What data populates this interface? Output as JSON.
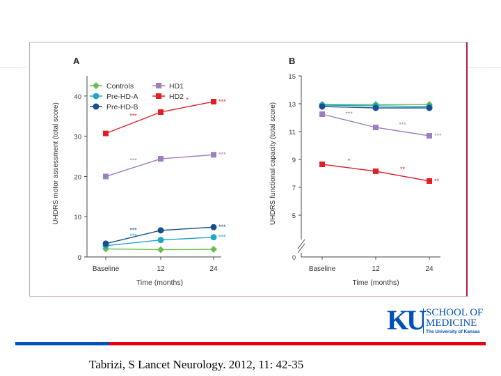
{
  "logo": {
    "mark": "KU",
    "line1": "SCHOOL OF",
    "line2": "MEDICINE",
    "line3": "The University of Kansas"
  },
  "citation": "Tabrizi, S Lancet Neurology. 2012, 11: 42-35",
  "colors": {
    "controls": "#6abf4b",
    "prehd_a": "#1fa6c9",
    "prehd_b": "#1a4f8b",
    "hd1": "#9b7fc0",
    "hd2": "#e31e24",
    "frame": "#b3174f",
    "ku_blue": "#0051ba",
    "ku_red": "#e8000d"
  },
  "chart_data": [
    {
      "type": "line",
      "panel_label": "A",
      "ylabel": "UHDRS motor assessment (total score)",
      "xlabel": "Time (months)",
      "x_categories": [
        "Baseline",
        "12",
        "24"
      ],
      "ylim": [
        0,
        45
      ],
      "y_ticks": [
        0,
        10,
        20,
        30,
        40
      ],
      "legend": {
        "placement": "top-left",
        "columns": [
          [
            "Controls",
            "Pre-HD-A",
            "Pre-HD-B"
          ],
          [
            "HD1",
            "HD2"
          ]
        ]
      },
      "series": [
        {
          "name": "Controls",
          "marker": "diamond",
          "color_key": "controls",
          "values": [
            2.0,
            1.8,
            1.9
          ],
          "annotations": []
        },
        {
          "name": "Pre-HD-A",
          "marker": "circle",
          "color_key": "prehd_a",
          "values": [
            2.8,
            4.2,
            4.9
          ],
          "annotations": [
            {
              "seg": 0,
              "text": "***"
            },
            {
              "point": 2,
              "text": "***"
            }
          ]
        },
        {
          "name": "Pre-HD-B",
          "marker": "circle",
          "color_key": "prehd_b",
          "values": [
            3.3,
            6.6,
            7.4
          ],
          "annotations": [
            {
              "seg": 0,
              "text": "***"
            },
            {
              "point": 2,
              "text": "***"
            }
          ]
        },
        {
          "name": "HD1",
          "marker": "square",
          "color_key": "hd1",
          "values": [
            20.0,
            24.4,
            25.4
          ],
          "annotations": [
            {
              "seg": 0,
              "text": "***"
            },
            {
              "point": 2,
              "text": "***"
            }
          ]
        },
        {
          "name": "HD2",
          "marker": "square",
          "color_key": "hd2",
          "values": [
            30.7,
            36.0,
            38.6
          ],
          "annotations": [
            {
              "seg": 0,
              "text": "***"
            },
            {
              "seg": 1,
              "text": "*"
            },
            {
              "point": 2,
              "text": "***"
            }
          ]
        }
      ]
    },
    {
      "type": "line",
      "panel_label": "B",
      "ylabel": "UHDRS functional capacity (total score)",
      "xlabel": "Time (months)",
      "x_categories": [
        "Baseline",
        "12",
        "24"
      ],
      "ylim": [
        4,
        15
      ],
      "y_ticks": [
        5,
        7,
        9,
        11,
        13,
        15
      ],
      "y_axis_break": true,
      "y_zero_label": "0",
      "series": [
        {
          "name": "Controls",
          "marker": "diamond",
          "color_key": "controls",
          "values": [
            12.95,
            12.95,
            12.95
          ],
          "annotations": []
        },
        {
          "name": "Pre-HD-A",
          "marker": "circle",
          "color_key": "prehd_a",
          "values": [
            12.9,
            12.85,
            12.8
          ],
          "annotations": []
        },
        {
          "name": "Pre-HD-B",
          "marker": "circle",
          "color_key": "prehd_b",
          "values": [
            12.8,
            12.7,
            12.7
          ],
          "annotations": []
        },
        {
          "name": "HD1",
          "marker": "square",
          "color_key": "hd1",
          "values": [
            12.25,
            11.3,
            10.7
          ],
          "annotations": [
            {
              "seg": 0,
              "text": "***"
            },
            {
              "seg": 1,
              "text": "***"
            },
            {
              "point": 2,
              "text": "***"
            }
          ]
        },
        {
          "name": "HD2",
          "marker": "square",
          "color_key": "hd2",
          "values": [
            8.65,
            8.15,
            7.45
          ],
          "annotations": [
            {
              "seg": 0,
              "text": "*"
            },
            {
              "seg": 1,
              "text": "**"
            },
            {
              "point": 2,
              "text": "**"
            }
          ]
        }
      ]
    }
  ]
}
